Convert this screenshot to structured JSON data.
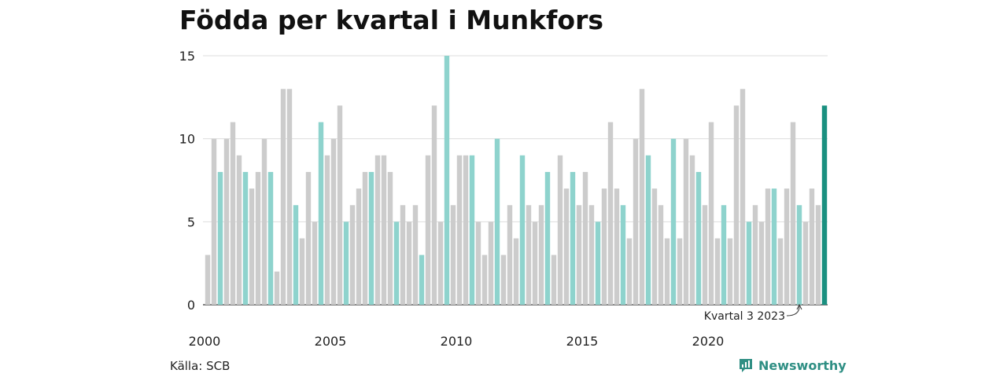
{
  "chart_data": {
    "type": "bar",
    "title": "Födda per kvartal i Munkfors",
    "xlabel": "",
    "ylabel": "",
    "ylim": [
      0,
      15
    ],
    "yticks": [
      0,
      5,
      10,
      15
    ],
    "grid": true,
    "x_start_year": 2000,
    "periods_per_year": 4,
    "xtick_labels": [
      "2000",
      "2005",
      "2010",
      "2015",
      "2020"
    ],
    "highlight_period": 3,
    "values": [
      3,
      10,
      8,
      10,
      11,
      9,
      8,
      7,
      8,
      10,
      8,
      2,
      13,
      13,
      6,
      4,
      8,
      5,
      11,
      9,
      10,
      12,
      5,
      6,
      7,
      8,
      8,
      9,
      9,
      8,
      5,
      6,
      5,
      6,
      3,
      9,
      12,
      5,
      15,
      6,
      9,
      9,
      9,
      5,
      3,
      5,
      10,
      3,
      6,
      4,
      9,
      6,
      5,
      6,
      8,
      3,
      9,
      7,
      8,
      6,
      8,
      6,
      5,
      7,
      11,
      7,
      6,
      4,
      10,
      13,
      9,
      7,
      6,
      4,
      10,
      4,
      10,
      9,
      8,
      6,
      11,
      4,
      6,
      4,
      12,
      13,
      5,
      6,
      5,
      7,
      7,
      4,
      7,
      11,
      6,
      5,
      7,
      6,
      12
    ],
    "colors": {
      "base": "#cccccc",
      "highlight": "#8ed3cd",
      "latest": "#1a9080"
    },
    "annotation": {
      "text": "Kvartal 3 2023",
      "target_index": 94
    }
  },
  "source": "Källa: SCB",
  "brand": {
    "name": "Newsworthy",
    "icon": "bar-chart-speech-bubble-icon"
  }
}
